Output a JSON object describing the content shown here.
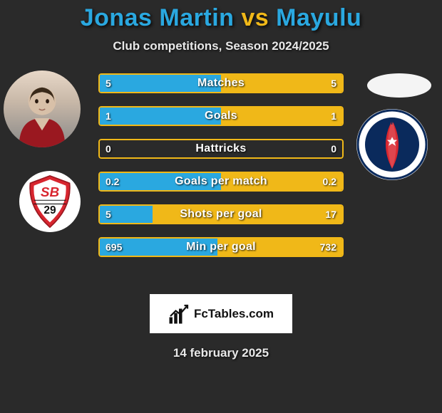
{
  "title": {
    "player1": "Jonas Martin",
    "vs": "vs",
    "player2": "Mayulu",
    "color_p1": "#2aa8e0",
    "color_vs": "#f0b818",
    "color_p2": "#2aa8e0"
  },
  "subtitle": "Club competitions, Season 2024/2025",
  "date": "14 february 2025",
  "brand": {
    "text": "FcTables.com"
  },
  "colors": {
    "border": "#f0b818",
    "fill_left": "#2aa8e0",
    "fill_right": "#f0b818",
    "track_bg": "transparent"
  },
  "bars": [
    {
      "label": "Matches",
      "left_val": "5",
      "right_val": "5",
      "left_pct": 50,
      "right_pct": 50
    },
    {
      "label": "Goals",
      "left_val": "1",
      "right_val": "1",
      "left_pct": 50,
      "right_pct": 50
    },
    {
      "label": "Hattricks",
      "left_val": "0",
      "right_val": "0",
      "left_pct": 0,
      "right_pct": 0
    },
    {
      "label": "Goals per match",
      "left_val": "0.2",
      "right_val": "0.2",
      "left_pct": 50,
      "right_pct": 50
    },
    {
      "label": "Shots per goal",
      "left_val": "5",
      "right_val": "17",
      "left_pct": 22,
      "right_pct": 78
    },
    {
      "label": "Min per goal",
      "left_val": "695",
      "right_val": "732",
      "left_pct": 48.5,
      "right_pct": 51.5
    }
  ],
  "clubs": {
    "left": {
      "name": "Stade Brestois 29",
      "primary": "#d8262f",
      "secondary": "#ffffff",
      "text": "SB",
      "sub": "29"
    },
    "right": {
      "name": "Paris Saint-Germain",
      "primary": "#0a2a5c",
      "secondary": "#d8262f",
      "tertiary": "#ffffff",
      "text": "PARIS"
    }
  }
}
